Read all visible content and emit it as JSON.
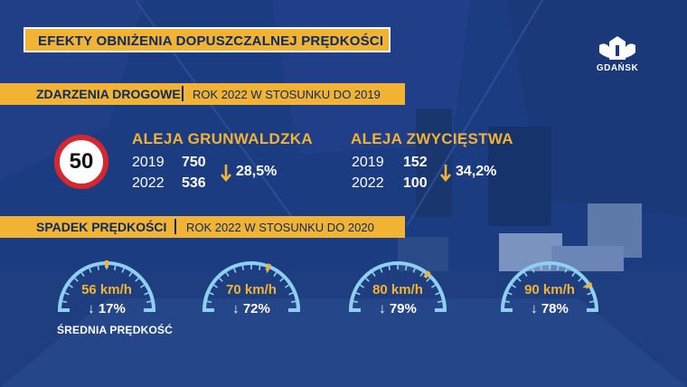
{
  "title": "EFEKTY OBNIŻENIA DOPUSZCZALNEJ PRĘDKOŚCI",
  "logo": {
    "text": "GDAŃSK",
    "icon": "gdansk-coat-of-arms-icon"
  },
  "accidents": {
    "section_title": "ZDARZENIA DROGOWE",
    "section_subtitle": "ROK 2022 W STOSUNKU DO 2019",
    "speed_sign": "50",
    "streets": [
      {
        "name": "ALEJA GRUNWALDZKA",
        "rows": [
          {
            "year": "2019",
            "value": "750"
          },
          {
            "year": "2022",
            "value": "536"
          }
        ],
        "change": "28,5%"
      },
      {
        "name": "ALEJA ZWYCIĘSTWA",
        "rows": [
          {
            "year": "2019",
            "value": "152"
          },
          {
            "year": "2022",
            "value": "100"
          }
        ],
        "change": "34,2%"
      }
    ]
  },
  "speed": {
    "section_title": "SPADEK PRĘDKOŚCI",
    "section_subtitle": "ROK 2022 W STOSUNKU DO 2020",
    "gauges": [
      {
        "speed": "56 km/h",
        "pct": "17%",
        "fraction": 0.5
      },
      {
        "speed": "70 km/h",
        "pct": "72%",
        "fraction": 0.62
      },
      {
        "speed": "80 km/h",
        "pct": "79%",
        "fraction": 0.72
      },
      {
        "speed": "90 km/h",
        "pct": "78%",
        "fraction": 0.82
      }
    ],
    "avg_label": "ŚREDNIA PRĘDKOŚĆ"
  },
  "colors": {
    "accent": "#f2b234",
    "navy": "#0c2b63",
    "gauge": "#8fd0f2",
    "sign_red": "#d7262e"
  }
}
